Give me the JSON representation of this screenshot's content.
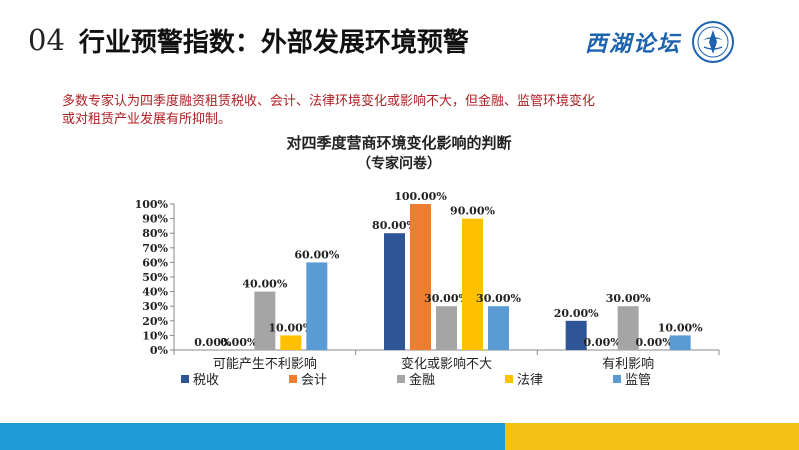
{
  "header": {
    "number": "04",
    "title": "行业预警指数：外部发展环境预警",
    "logo_text": "西湖论坛"
  },
  "subtitle": {
    "line1": "多数专家认为四季度融资租赁税收、会计、法律环境变化或影响不大，但金融、监管环境变化",
    "line2": "或对租赁产业发展有所抑制。"
  },
  "chart_data": {
    "type": "bar",
    "title": "对四季度营商环境变化影响的判断",
    "subtitle": "（专家问卷）",
    "categories": [
      "可能产生不利影响",
      "变化或影响不大",
      "有利影响"
    ],
    "series": [
      {
        "name": "税收",
        "color": "#2e5597",
        "values": [
          0,
          80,
          20
        ]
      },
      {
        "name": "会计",
        "color": "#ed7d31",
        "values": [
          0,
          100,
          0
        ]
      },
      {
        "name": "金融",
        "color": "#a5a5a5",
        "values": [
          40,
          30,
          30
        ]
      },
      {
        "name": "法律",
        "color": "#ffc000",
        "values": [
          10,
          90,
          0
        ]
      },
      {
        "name": "监管",
        "color": "#5b9bd5",
        "values": [
          60,
          30,
          10
        ]
      }
    ],
    "data_labels": [
      [
        "0.00%",
        "80.00%",
        "20.00%"
      ],
      [
        "0.00%",
        "100.00%",
        "0.00%"
      ],
      [
        "40.00%",
        "30.00%",
        "30.00%"
      ],
      [
        "10.00%",
        "90.00%",
        "0.00%"
      ],
      [
        "60.00%",
        "30.00%",
        "10.00%"
      ]
    ],
    "ylim": [
      0,
      100
    ],
    "yticks": [
      "0%",
      "10%",
      "20%",
      "30%",
      "40%",
      "50%",
      "60%",
      "70%",
      "80%",
      "90%",
      "100%"
    ],
    "grid": false,
    "legend_position": "bottom"
  },
  "footer": {
    "blue": "#1e9ad6",
    "yellow": "#f5c118"
  }
}
